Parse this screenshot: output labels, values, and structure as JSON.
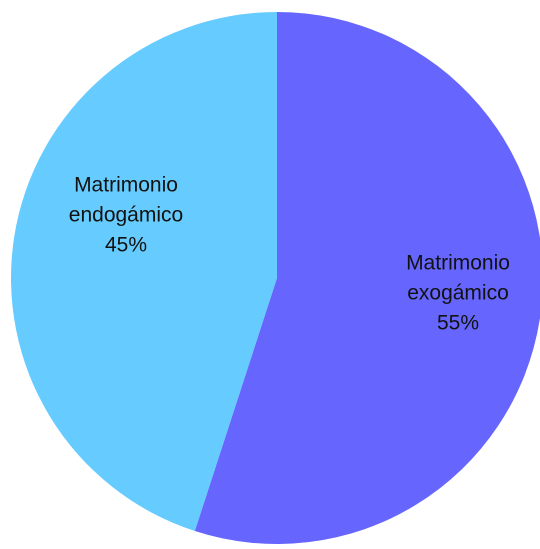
{
  "chart_data": {
    "type": "pie",
    "slices": [
      {
        "name": "Matrimonio exogámico",
        "value": 55,
        "label_lines": [
          "Matrimonio",
          "exogámico",
          "55%"
        ],
        "color": "#6666ff"
      },
      {
        "name": "Matrimonio endogámico",
        "value": 45,
        "label_lines": [
          "Matrimonio",
          "endogámico",
          "45%"
        ],
        "color": "#66ccff"
      }
    ],
    "start_angle": "12 o'clock",
    "direction": "clockwise",
    "legend": "none",
    "labels": "inside slices"
  }
}
